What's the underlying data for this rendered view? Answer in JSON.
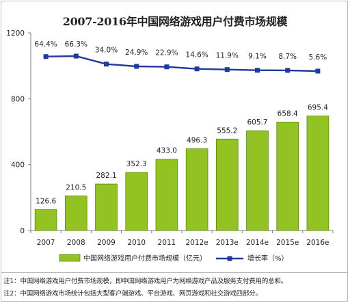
{
  "chart_data": {
    "type": "bar",
    "title": "2007-2016年中国网络游戏用户付费市场规模",
    "categories": [
      "2007",
      "2008",
      "2009",
      "2010",
      "2011",
      "2012e",
      "2013e",
      "2014e",
      "2015e",
      "2016e"
    ],
    "series": [
      {
        "name": "中国网络游戏用户付费市场规模（亿元）",
        "type": "bar",
        "color": "#92c322",
        "values": [
          126.6,
          210.5,
          282.1,
          352.3,
          433.0,
          496.3,
          555.2,
          605.7,
          658.4,
          695.4
        ],
        "labels": [
          "126.6",
          "210.5",
          "282.1",
          "352.3",
          "433.0",
          "496.3",
          "555.2",
          "605.7",
          "658.4",
          "695.4"
        ]
      },
      {
        "name": "增长率（%）",
        "type": "line",
        "color": "#1f3a9a",
        "values": [
          64.4,
          66.3,
          34.0,
          24.9,
          22.9,
          14.6,
          11.9,
          9.1,
          8.7,
          5.6
        ],
        "labels": [
          "64.4%",
          "66.3%",
          "34.0%",
          "24.9%",
          "22.9%",
          "14.6%",
          "11.9%",
          "9.1%",
          "8.7%",
          "5.6%"
        ]
      }
    ],
    "yticks": [
      "0",
      "400",
      "800",
      "1200"
    ],
    "ylim": [
      0,
      1200
    ],
    "grid": false,
    "legend_position": "bottom"
  },
  "notes": [
    "注1：中国网络游戏用户付费市场规模，即中国网络游戏用户为网络游戏产品及服务支付费用的总和。",
    "注2：中国网络游戏市场统计包括大型客户端游戏、平台游戏、网页游戏和社交游戏四部分。"
  ]
}
